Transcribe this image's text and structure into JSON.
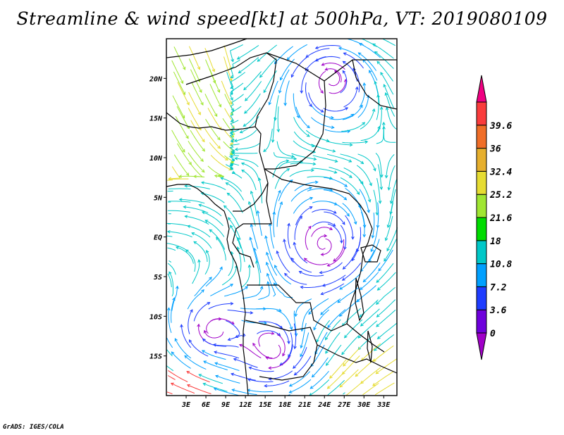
{
  "title": "Streamline & wind speed[kt] at 500hPa, VT: 2019080109",
  "footer": "GrADS: IGES/COLA",
  "map": {
    "region": "Central & Southern Africa",
    "lon_range": [
      0,
      35
    ],
    "lat_range": [
      -20,
      25
    ],
    "lon_ticks": [
      {
        "lon": 3,
        "label": "3E"
      },
      {
        "lon": 6,
        "label": "6E"
      },
      {
        "lon": 9,
        "label": "9E"
      },
      {
        "lon": 12,
        "label": "12E"
      },
      {
        "lon": 15,
        "label": "15E"
      },
      {
        "lon": 18,
        "label": "18E"
      },
      {
        "lon": 21,
        "label": "21E"
      },
      {
        "lon": 24,
        "label": "24E"
      },
      {
        "lon": 27,
        "label": "27E"
      },
      {
        "lon": 30,
        "label": "30E"
      },
      {
        "lon": 33,
        "label": "33E"
      }
    ],
    "lat_ticks": [
      {
        "lat": 20,
        "label": "20N"
      },
      {
        "lat": 15,
        "label": "15N"
      },
      {
        "lat": 10,
        "label": "10N"
      },
      {
        "lat": 5,
        "label": "5N"
      },
      {
        "lat": 0,
        "label": "EQ"
      },
      {
        "lat": -5,
        "label": "5S"
      },
      {
        "lat": -10,
        "label": "10S"
      },
      {
        "lat": -15,
        "label": "15S"
      }
    ]
  },
  "colorbar": {
    "levels": [
      "0",
      "3.6",
      "7.2",
      "10.8",
      "18",
      "21.6",
      "25.2",
      "32.4",
      "36",
      "39.6"
    ],
    "colors": [
      "#a000c8",
      "#6e00dc",
      "#1e3cff",
      "#00a0ff",
      "#00c8c8",
      "#00dc00",
      "#a0e632",
      "#e6dc32",
      "#e6af2d",
      "#f06e28",
      "#fa3c3c",
      "#f00082"
    ]
  }
}
